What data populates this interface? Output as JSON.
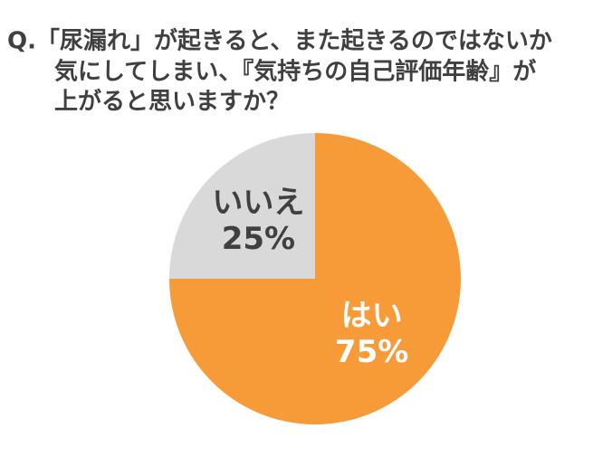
{
  "chart_data": {
    "type": "pie",
    "title": [
      "Q.「尿漏れ」が起きると、また起きるのではないか",
      "気にしてしまい、『気持ちの自己評価年齢』が",
      "上がると思いますか？"
    ],
    "categories": [
      "はい",
      "いいえ"
    ],
    "values": [
      75,
      25
    ],
    "value_labels": [
      "75%",
      "25%"
    ],
    "colors": [
      "#f79a38",
      "#d9d9d9"
    ],
    "label_colors": [
      "#ffffff",
      "#404040"
    ]
  }
}
